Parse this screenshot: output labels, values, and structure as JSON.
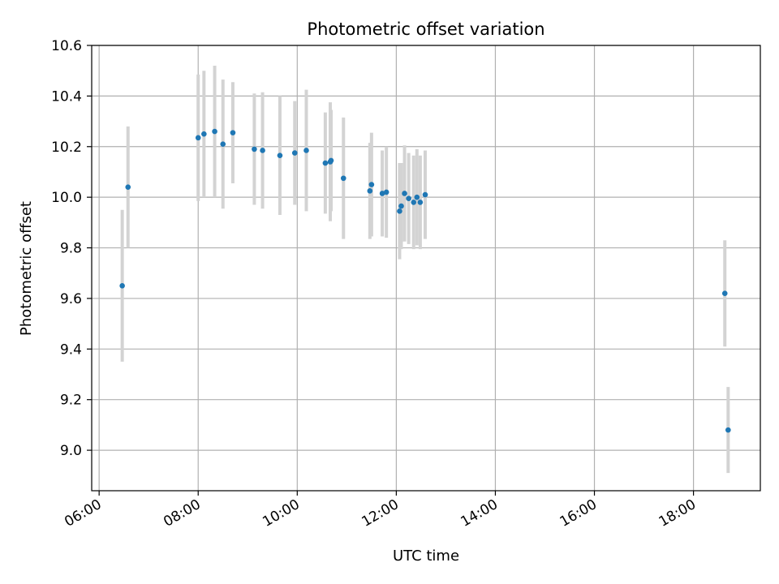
{
  "chart_data": {
    "type": "scatter",
    "title": "Photometric offset variation",
    "xlabel": "UTC time",
    "ylabel": "Photometric offset",
    "xlim": [
      "05:51",
      "19:21"
    ],
    "ylim": [
      8.84,
      10.6
    ],
    "x_ticks": [
      "06:00",
      "08:00",
      "10:00",
      "12:00",
      "14:00",
      "16:00",
      "18:00"
    ],
    "y_ticks": [
      "9.0",
      "9.2",
      "9.4",
      "9.6",
      "9.8",
      "10.0",
      "10.2",
      "10.4",
      "10.6"
    ],
    "grid": true,
    "colors": {
      "points": "#1f77b4",
      "error_bars": "#d3d3d3"
    },
    "series": [
      {
        "points": [
          {
            "x": "06:28",
            "y": 9.65,
            "yerr": 0.3
          },
          {
            "x": "06:35",
            "y": 10.04,
            "yerr": 0.24
          },
          {
            "x": "08:00",
            "y": 10.235,
            "yerr": 0.25
          },
          {
            "x": "08:07",
            "y": 10.25,
            "yerr": 0.25
          },
          {
            "x": "08:20",
            "y": 10.26,
            "yerr": 0.26
          },
          {
            "x": "08:30",
            "y": 10.21,
            "yerr": 0.255
          },
          {
            "x": "08:42",
            "y": 10.255,
            "yerr": 0.2
          },
          {
            "x": "09:08",
            "y": 10.19,
            "yerr": 0.22
          },
          {
            "x": "09:18",
            "y": 10.185,
            "yerr": 0.23
          },
          {
            "x": "09:39",
            "y": 10.165,
            "yerr": 0.235
          },
          {
            "x": "09:57",
            "y": 10.175,
            "yerr": 0.205
          },
          {
            "x": "10:11",
            "y": 10.185,
            "yerr": 0.24
          },
          {
            "x": "10:34",
            "y": 10.135,
            "yerr": 0.2
          },
          {
            "x": "10:40",
            "y": 10.14,
            "yerr": 0.235
          },
          {
            "x": "10:41",
            "y": 10.145,
            "yerr": 0.2
          },
          {
            "x": "10:56",
            "y": 10.075,
            "yerr": 0.24
          },
          {
            "x": "11:28",
            "y": 10.025,
            "yerr": 0.19
          },
          {
            "x": "11:30",
            "y": 10.05,
            "yerr": 0.205
          },
          {
            "x": "11:43",
            "y": 10.015,
            "yerr": 0.17
          },
          {
            "x": "11:48",
            "y": 10.02,
            "yerr": 0.18
          },
          {
            "x": "12:04",
            "y": 9.945,
            "yerr": 0.19
          },
          {
            "x": "12:06",
            "y": 9.965,
            "yerr": 0.17
          },
          {
            "x": "12:10",
            "y": 10.015,
            "yerr": 0.19
          },
          {
            "x": "12:15",
            "y": 9.995,
            "yerr": 0.18
          },
          {
            "x": "12:21",
            "y": 9.98,
            "yerr": 0.185
          },
          {
            "x": "12:25",
            "y": 10.0,
            "yerr": 0.19
          },
          {
            "x": "12:29",
            "y": 9.98,
            "yerr": 0.185
          },
          {
            "x": "12:35",
            "y": 10.01,
            "yerr": 0.175
          },
          {
            "x": "18:38",
            "y": 9.62,
            "yerr": 0.21
          },
          {
            "x": "18:42",
            "y": 9.08,
            "yerr": 0.17
          }
        ]
      }
    ]
  }
}
